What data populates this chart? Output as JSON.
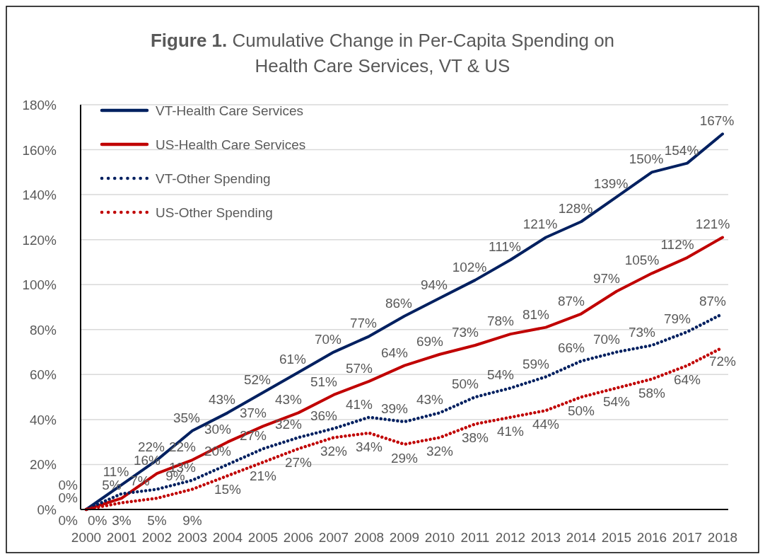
{
  "chart_data": {
    "type": "line",
    "title": "Figure 1. Cumulative Change in Per-Capita Spending on Health Care Services, VT & US",
    "categories": [
      "2000",
      "2001",
      "2002",
      "2003",
      "2004",
      "2005",
      "2006",
      "2007",
      "2008",
      "2009",
      "2010",
      "2011",
      "2012",
      "2013",
      "2014",
      "2015",
      "2016",
      "2017",
      "2018"
    ],
    "ylim": [
      0,
      180
    ],
    "yticks": [
      {
        "value": 0,
        "label": "0%"
      },
      {
        "value": 20,
        "label": "20%"
      },
      {
        "value": 40,
        "label": "40%"
      },
      {
        "value": 60,
        "label": "60%"
      },
      {
        "value": 80,
        "label": "80%"
      },
      {
        "value": 100,
        "label": "100%"
      },
      {
        "value": 120,
        "label": "120%"
      },
      {
        "value": 140,
        "label": "140%"
      },
      {
        "value": 160,
        "label": "160%"
      },
      {
        "value": 180,
        "label": "180%"
      }
    ],
    "grid": "y",
    "legend": "top left",
    "marker": "none",
    "series": [
      {
        "name": "VT-Health Care Services",
        "color": "#002060",
        "line_style": "solid",
        "values": [
          0,
          11,
          22,
          35,
          43,
          52,
          61,
          70,
          77,
          86,
          94,
          102,
          111,
          121,
          128,
          139,
          150,
          154,
          167
        ],
        "value_labels": [
          "0%",
          "11%",
          "22%",
          "35%",
          "43%",
          "52%",
          "61%",
          "70%",
          "77%",
          "86%",
          "94%",
          "102%",
          "111%",
          "121%",
          "128%",
          "139%",
          "150%",
          "154%",
          "167%"
        ]
      },
      {
        "name": "US-Health Care Services",
        "color": "#c00000",
        "line_style": "solid",
        "values": [
          0,
          5,
          16,
          22,
          30,
          37,
          43,
          51,
          57,
          64,
          69,
          73,
          78,
          81,
          87,
          97,
          105,
          112,
          121
        ],
        "value_labels": [
          "0%",
          "5%",
          "16%",
          "22%",
          "30%",
          "37%",
          "43%",
          "51%",
          "57%",
          "64%",
          "69%",
          "73%",
          "78%",
          "81%",
          "87%",
          "97%",
          "105%",
          "112%",
          "121%"
        ]
      },
      {
        "name": "VT-Other Spending",
        "color": "#002060",
        "line_style": "dotted",
        "values": [
          0,
          7,
          9,
          13,
          20,
          27,
          32,
          36,
          41,
          39,
          43,
          50,
          54,
          59,
          66,
          70,
          73,
          79,
          87
        ],
        "value_labels": [
          "0%",
          "7%",
          "9%",
          "13%",
          "20%",
          "27%",
          "32%",
          "36%",
          "41%",
          "39%",
          "43%",
          "50%",
          "54%",
          "59%",
          "66%",
          "70%",
          "73%",
          "79%",
          "87%"
        ]
      },
      {
        "name": "US-Other Spending",
        "color": "#c00000",
        "line_style": "dotted",
        "values": [
          0,
          3,
          5,
          9,
          15,
          21,
          27,
          32,
          34,
          29,
          32,
          38,
          41,
          44,
          50,
          54,
          58,
          64,
          72
        ],
        "value_labels": [
          "0%",
          "3%",
          "5%",
          "9%",
          "15%",
          "21%",
          "27%",
          "32%",
          "34%",
          "29%",
          "32%",
          "38%",
          "41%",
          "44%",
          "50%",
          "54%",
          "58%",
          "64%",
          "72%"
        ]
      }
    ]
  }
}
